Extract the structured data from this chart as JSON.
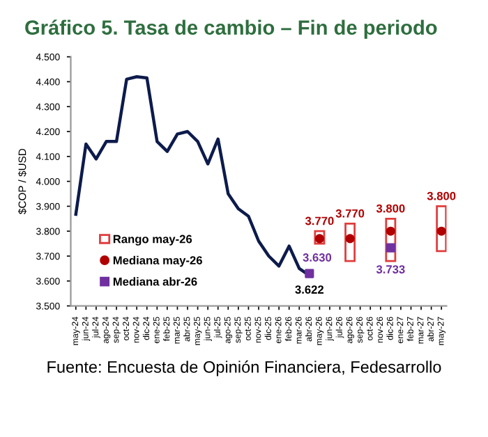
{
  "chart_data": {
    "type": "line",
    "title": "Gráfico 5. Tasa de cambio – Fin de periodo",
    "ylabel": "$COP / $USD",
    "categories": [
      "may-24",
      "jun-24",
      "jul-24",
      "ago-24",
      "sep-24",
      "oct-24",
      "nov-24",
      "dic-24",
      "ene-25",
      "feb-25",
      "mar-25",
      "abr-25",
      "may-25",
      "jun-25",
      "jul-25",
      "ago-25",
      "sep-25",
      "oct-25",
      "nov-25",
      "dic-25",
      "ene-26",
      "feb-26",
      "mar-26",
      "abr-26",
      "may-26",
      "jun-26",
      "jul-26",
      "ago-26",
      "sep-26",
      "oct-26",
      "nov-26",
      "dic-26",
      "ene-27",
      "feb-27",
      "mar-27",
      "abr-27",
      "may-27"
    ],
    "ylim": [
      3500,
      4500
    ],
    "yticks": [
      {
        "value": 3500,
        "label": "3.500"
      },
      {
        "value": 3600,
        "label": "3.600"
      },
      {
        "value": 3700,
        "label": "3.700"
      },
      {
        "value": 3800,
        "label": "3.800"
      },
      {
        "value": 3900,
        "label": "3.900"
      },
      {
        "value": 4000,
        "label": "4.000"
      },
      {
        "value": 4100,
        "label": "4.100"
      },
      {
        "value": 4200,
        "label": "4.200"
      },
      {
        "value": 4300,
        "label": "4.300"
      },
      {
        "value": 4400,
        "label": "4.400"
      },
      {
        "value": 4500,
        "label": "4.500"
      }
    ],
    "grid": false,
    "legend": "bottom left",
    "series": [
      {
        "color": "#0d1b4c",
        "marker": "none",
        "values": [
          3868,
          4150,
          4090,
          4160,
          4160,
          4410,
          4420,
          4415,
          4160,
          4120,
          4190,
          4200,
          4160,
          4070,
          4170,
          3950,
          3890,
          3860,
          3760,
          3700,
          3660,
          3740,
          3650,
          3622,
          null,
          null,
          null,
          null,
          null,
          null,
          null,
          null,
          null,
          null,
          null,
          null,
          null
        ],
        "value_labels": [
          null,
          null,
          null,
          null,
          null,
          null,
          null,
          null,
          null,
          null,
          null,
          null,
          null,
          null,
          null,
          null,
          null,
          null,
          null,
          null,
          null,
          null,
          null,
          "3.622",
          null,
          null,
          null,
          null,
          null,
          null,
          null,
          null,
          null,
          null,
          null,
          null,
          null
        ]
      },
      {
        "type": "bar",
        "name": "Rango may-26",
        "color": "#e03c3c",
        "base": [
          null,
          null,
          null,
          null,
          null,
          null,
          null,
          null,
          null,
          null,
          null,
          null,
          null,
          null,
          null,
          null,
          null,
          null,
          null,
          null,
          null,
          null,
          null,
          null,
          3750,
          null,
          null,
          3680,
          null,
          null,
          null,
          3680,
          null,
          null,
          null,
          null,
          3720
        ],
        "values": [
          null,
          null,
          null,
          null,
          null,
          null,
          null,
          null,
          null,
          null,
          null,
          null,
          null,
          null,
          null,
          null,
          null,
          null,
          null,
          null,
          null,
          null,
          null,
          null,
          50,
          null,
          null,
          150,
          null,
          null,
          null,
          170,
          null,
          null,
          null,
          null,
          180
        ]
      },
      {
        "type": "scatter",
        "name": "Mediana may-26",
        "color": "#b00000",
        "marker": "circle",
        "values": [
          null,
          null,
          null,
          null,
          null,
          null,
          null,
          null,
          null,
          null,
          null,
          null,
          null,
          null,
          null,
          null,
          null,
          null,
          null,
          null,
          null,
          null,
          null,
          null,
          3770,
          null,
          null,
          3770,
          null,
          null,
          null,
          3800,
          null,
          null,
          null,
          null,
          3800
        ],
        "value_labels": [
          null,
          null,
          null,
          null,
          null,
          null,
          null,
          null,
          null,
          null,
          null,
          null,
          null,
          null,
          null,
          null,
          null,
          null,
          null,
          null,
          null,
          null,
          null,
          null,
          "3.770",
          null,
          null,
          "3.770",
          null,
          null,
          null,
          "3.800",
          null,
          null,
          null,
          null,
          "3.800"
        ]
      },
      {
        "type": "scatter",
        "name": "Mediana abr-26",
        "color": "#7030a0",
        "marker": "square",
        "values": [
          null,
          null,
          null,
          null,
          null,
          null,
          null,
          null,
          null,
          null,
          null,
          null,
          null,
          null,
          null,
          null,
          null,
          null,
          null,
          null,
          null,
          null,
          null,
          3630,
          null,
          null,
          null,
          null,
          null,
          null,
          null,
          3733,
          null,
          null,
          null,
          null,
          null
        ],
        "value_labels": [
          null,
          null,
          null,
          null,
          null,
          null,
          null,
          null,
          null,
          null,
          null,
          null,
          null,
          null,
          null,
          null,
          null,
          null,
          null,
          null,
          null,
          null,
          null,
          "3.630",
          null,
          null,
          null,
          null,
          null,
          null,
          null,
          "3.733",
          null,
          null,
          null,
          null,
          null
        ]
      }
    ],
    "annotations": [
      "Fuente: Encuesta de Opinión Financiera, Fedesarrollo"
    ]
  }
}
